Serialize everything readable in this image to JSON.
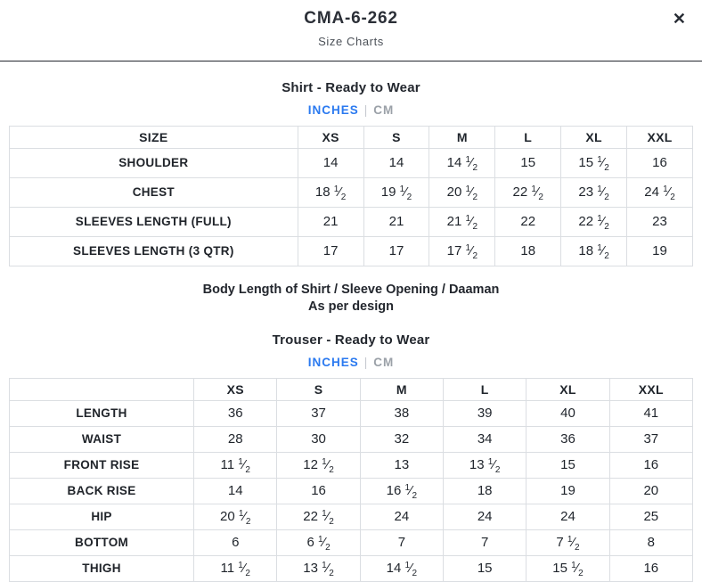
{
  "header": {
    "title": "CMA-6-262",
    "subtitle": "Size Charts",
    "close_icon": "✕"
  },
  "colors": {
    "accent_blue": "#2b7af0",
    "inactive_gray": "#9ba1a8",
    "table_border": "#dbdee2",
    "text_dark": "#23272e"
  },
  "shirt": {
    "heading": "Shirt - Ready to Wear",
    "unit_active": "INCHES",
    "unit_separator": "|",
    "unit_inactive": "CM",
    "table": {
      "header": [
        "SIZE",
        "XS",
        "S",
        "M",
        "L",
        "XL",
        "XXL"
      ],
      "rows": [
        {
          "label": "SHOULDER",
          "values": [
            "14",
            "14",
            "14 1/2",
            "15",
            "15 1/2",
            "16"
          ]
        },
        {
          "label": "CHEST",
          "values": [
            "18 1/2",
            "19 1/2",
            "20 1/2",
            "22 1/2",
            "23 1/2",
            "24 1/2"
          ]
        },
        {
          "label": "SLEEVES LENGTH (FULL)",
          "values": [
            "21",
            "21",
            "21 1/2",
            "22",
            "22 1/2",
            "23"
          ]
        },
        {
          "label": "SLEEVES LENGTH (3 QTR)",
          "values": [
            "17",
            "17",
            "17 1/2",
            "18",
            "18 1/2",
            "19"
          ]
        }
      ]
    }
  },
  "note": {
    "line1": "Body Length of Shirt / Sleeve Opening / Daaman",
    "line2": "As per design"
  },
  "trouser": {
    "heading": "Trouser - Ready to Wear",
    "unit_active": "INCHES",
    "unit_separator": "|",
    "unit_inactive": "CM",
    "table": {
      "header": [
        "",
        "XS",
        "S",
        "M",
        "L",
        "XL",
        "XXL"
      ],
      "rows": [
        {
          "label": "LENGTH",
          "values": [
            "36",
            "37",
            "38",
            "39",
            "40",
            "41"
          ]
        },
        {
          "label": "WAIST",
          "values": [
            "28",
            "30",
            "32",
            "34",
            "36",
            "37"
          ]
        },
        {
          "label": "FRONT RISE",
          "values": [
            "11 1/2",
            "12 1/2",
            "13",
            "13 1/2",
            "15",
            "16"
          ]
        },
        {
          "label": "BACK RISE",
          "values": [
            "14",
            "16",
            "16 1/2",
            "18",
            "19",
            "20"
          ]
        },
        {
          "label": "HIP",
          "values": [
            "20 1/2",
            "22 1/2",
            "24",
            "24",
            "24",
            "25"
          ]
        },
        {
          "label": "BOTTOM",
          "values": [
            "6",
            "6 1/2",
            "7",
            "7",
            "7 1/2",
            "8"
          ]
        },
        {
          "label": "THIGH",
          "values": [
            "11 1/2",
            "13 1/2",
            "14 1/2",
            "15",
            "15 1/2",
            "16"
          ]
        }
      ]
    }
  }
}
